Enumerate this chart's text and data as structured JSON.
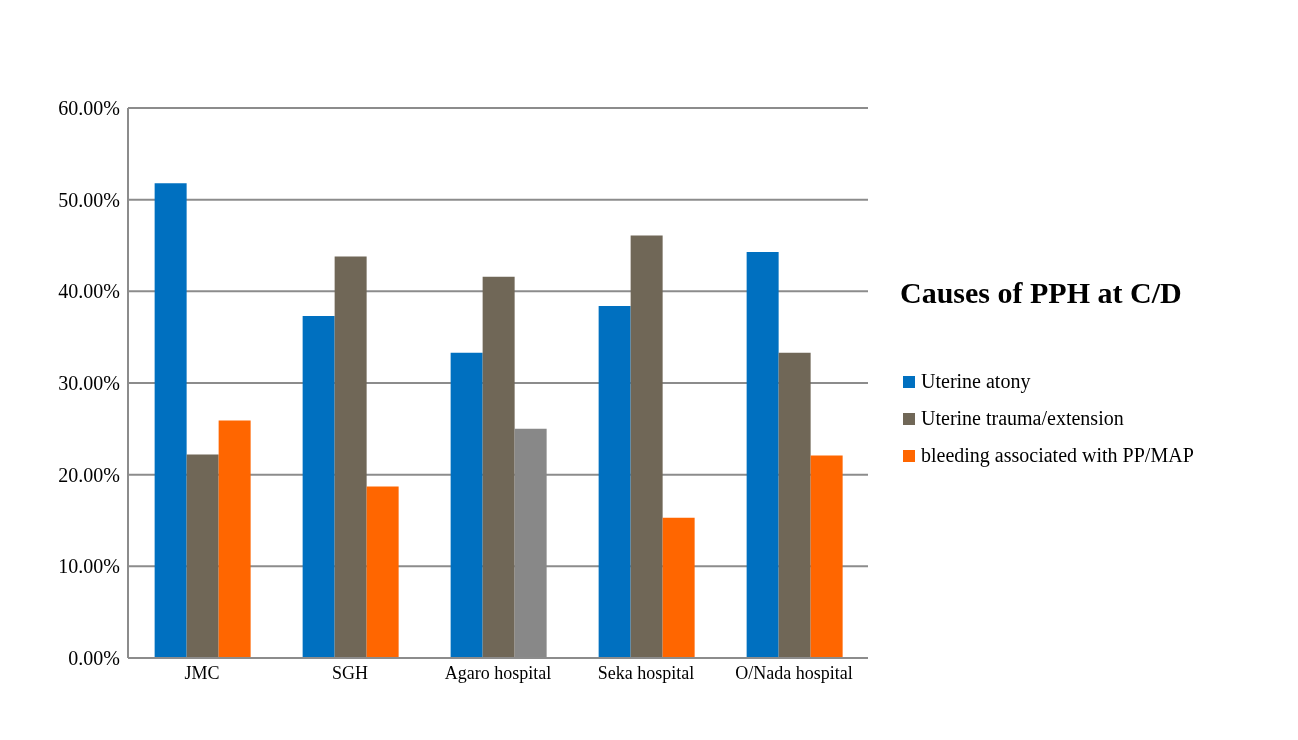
{
  "chart_data": {
    "type": "bar",
    "title": "Causes of PPH at C/D",
    "categories": [
      "JMC",
      "SGH",
      "Agaro hospital",
      "Seka hospital",
      "O/Nada hospital"
    ],
    "series": [
      {
        "name": "Uterine atony",
        "color": "#0070c0",
        "values": [
          51.8,
          37.3,
          33.3,
          38.4,
          44.3
        ]
      },
      {
        "name": "Uterine trauma/extension",
        "color": "#706757",
        "values": [
          22.2,
          43.8,
          41.6,
          46.1,
          33.3
        ]
      },
      {
        "name": "bleeding associated with PP/MAP",
        "color": "#ff6600",
        "colors": [
          "#ff6600",
          "#ff6600",
          "#888888",
          "#ff6600",
          "#ff6600"
        ],
        "values": [
          25.9,
          18.7,
          25.0,
          15.3,
          22.1
        ]
      }
    ],
    "ylim": [
      0,
      60
    ],
    "yticks": [
      {
        "value": 0,
        "label": "0.00%"
      },
      {
        "value": 10,
        "label": "10.00%"
      },
      {
        "value": 20,
        "label": "20.00%"
      },
      {
        "value": 30,
        "label": "30.00%"
      },
      {
        "value": 40,
        "label": "40.00%"
      },
      {
        "value": 50,
        "label": "50.00%"
      },
      {
        "value": 60,
        "label": "60.00%"
      }
    ],
    "grid": "y",
    "legend": "right"
  }
}
